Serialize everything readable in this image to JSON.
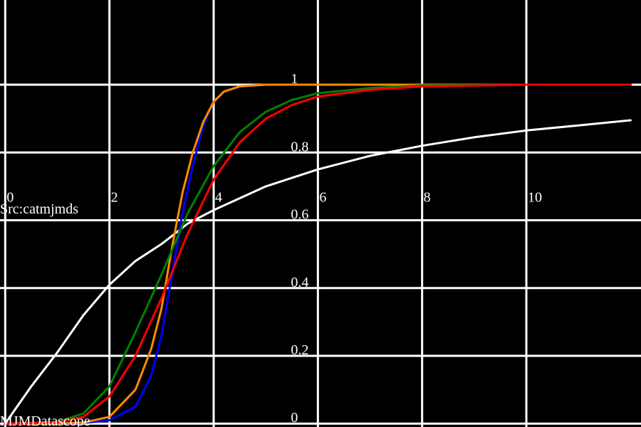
{
  "chart_data": {
    "type": "line",
    "title": "",
    "xlabel": "",
    "ylabel": "",
    "xlim": [
      -0.1,
      12.2
    ],
    "ylim": [
      -0.01,
      1.25
    ],
    "grid": true,
    "x_gridlines": [
      0,
      2,
      4,
      6,
      8,
      10
    ],
    "y_gridlines": [
      0,
      0.2,
      0.4,
      0.6,
      0.8,
      1
    ],
    "x_tick_labels": [
      "0",
      "2",
      "4",
      "6",
      "8",
      "10"
    ],
    "y_tick_labels": [
      "0",
      "0.2",
      "0.4",
      "0.6",
      "0.8",
      "1"
    ],
    "series": [
      {
        "color": "#ffffff",
        "x": [
          0,
          0.5,
          1,
          1.5,
          2,
          2.5,
          3,
          3.5,
          4,
          5,
          6,
          7,
          8,
          9,
          10,
          11,
          12
        ],
        "y": [
          0,
          0.11,
          0.21,
          0.32,
          0.41,
          0.48,
          0.53,
          0.59,
          0.63,
          0.7,
          0.75,
          0.79,
          0.82,
          0.845,
          0.865,
          0.88,
          0.895
        ]
      },
      {
        "color": "#0000ff",
        "x": [
          0,
          1,
          1.5,
          2,
          2.5,
          2.8,
          3,
          3.2,
          3.4,
          3.6,
          3.8,
          4,
          4.2,
          4.5,
          5,
          6,
          8,
          12
        ],
        "y": [
          0,
          0,
          0.002,
          0.01,
          0.05,
          0.14,
          0.26,
          0.44,
          0.62,
          0.76,
          0.88,
          0.95,
          0.98,
          0.995,
          1,
          1,
          1,
          1
        ]
      },
      {
        "color": "#ff8c00",
        "x": [
          0,
          1,
          1.5,
          2,
          2.5,
          2.8,
          3,
          3.2,
          3.4,
          3.6,
          3.8,
          4,
          4.2,
          4.5,
          5,
          6,
          8,
          12
        ],
        "y": [
          0,
          0,
          0.003,
          0.02,
          0.1,
          0.22,
          0.34,
          0.52,
          0.68,
          0.8,
          0.89,
          0.95,
          0.98,
          0.995,
          1,
          1,
          1,
          1
        ]
      },
      {
        "color": "#008000",
        "x": [
          0,
          1,
          1.5,
          2,
          2.5,
          3,
          3.5,
          4,
          4.5,
          5,
          5.5,
          6,
          7,
          8,
          10,
          12
        ],
        "y": [
          0,
          0.005,
          0.03,
          0.11,
          0.27,
          0.44,
          0.62,
          0.76,
          0.86,
          0.92,
          0.955,
          0.975,
          0.99,
          0.998,
          1,
          1
        ]
      },
      {
        "color": "#ff0000",
        "x": [
          0,
          1,
          1.5,
          2,
          2.5,
          3,
          3.5,
          4,
          4.5,
          5,
          5.5,
          6,
          7,
          8,
          10,
          12
        ],
        "y": [
          0,
          0.003,
          0.02,
          0.08,
          0.2,
          0.37,
          0.56,
          0.72,
          0.83,
          0.9,
          0.94,
          0.965,
          0.985,
          0.995,
          1,
          1
        ]
      }
    ],
    "annotations": [
      "Src:catmjmds",
      "MJMDatascope"
    ]
  }
}
